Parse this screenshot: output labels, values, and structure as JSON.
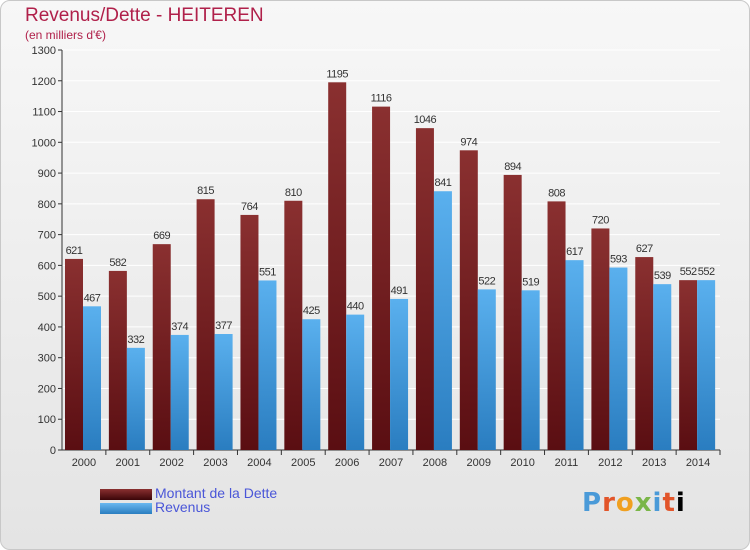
{
  "title": "Revenus/Dette - HEITEREN",
  "subtitle": "(en milliers d'€)",
  "legend": [
    {
      "label": "Montant de la Dette",
      "color": "#7a1e22"
    },
    {
      "label": "Revenus",
      "color": "#4aa3e0"
    }
  ],
  "logo": [
    "P",
    "r",
    "o",
    "x",
    "i",
    "t",
    "i"
  ],
  "colors": {
    "debt_top": "#8a3030",
    "debt_bottom": "#5a0e12",
    "rev_top": "#5ab0ee",
    "rev_bottom": "#2a7dc0",
    "axis": "#333333",
    "grid": "#ffffff"
  },
  "chart_data": {
    "type": "bar",
    "categories": [
      "2000",
      "2001",
      "2002",
      "2003",
      "2004",
      "2005",
      "2006",
      "2007",
      "2008",
      "2009",
      "2010",
      "2011",
      "2012",
      "2013",
      "2014"
    ],
    "series": [
      {
        "name": "Montant de la Dette",
        "values": [
          621,
          582,
          669,
          815,
          764,
          810,
          1195,
          1116,
          1046,
          974,
          894,
          808,
          720,
          627,
          552
        ]
      },
      {
        "name": "Revenus",
        "values": [
          467,
          332,
          374,
          377,
          551,
          425,
          440,
          491,
          841,
          522,
          519,
          617,
          593,
          539,
          552
        ]
      }
    ],
    "ylim": [
      0,
      1300
    ],
    "yticks": [
      0,
      100,
      200,
      300,
      400,
      500,
      600,
      700,
      800,
      900,
      1000,
      1100,
      1200,
      1300
    ],
    "grid": true,
    "legend_position": "bottom-left"
  }
}
